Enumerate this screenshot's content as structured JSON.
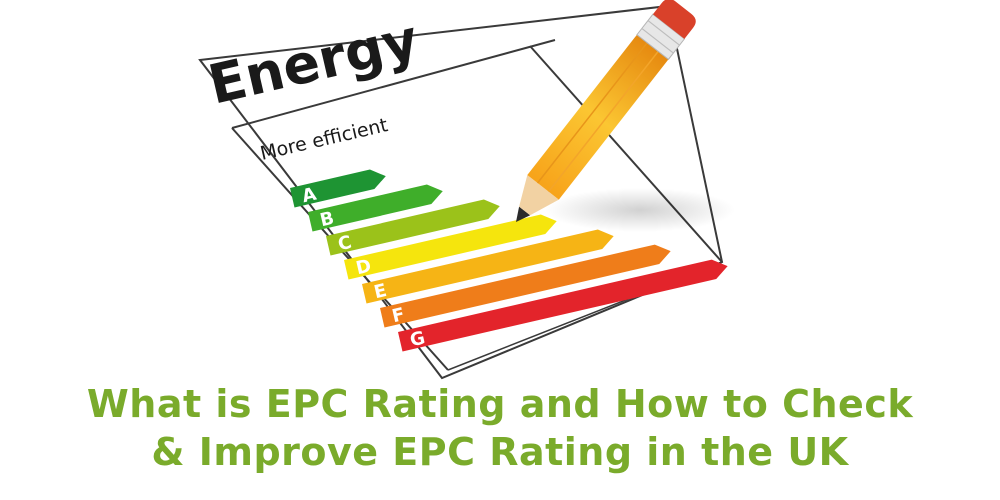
{
  "label": {
    "heading": "Energy",
    "subheading": "More efficient",
    "bands": [
      {
        "letter": "A",
        "color": "#1e9433"
      },
      {
        "letter": "B",
        "color": "#3fae2a"
      },
      {
        "letter": "C",
        "color": "#9bc21a"
      },
      {
        "letter": "D",
        "color": "#f5e50d"
      },
      {
        "letter": "E",
        "color": "#f6b415"
      },
      {
        "letter": "F",
        "color": "#ef7d1a"
      },
      {
        "letter": "G",
        "color": "#e3242b"
      }
    ]
  },
  "headline": {
    "line1": "What is EPC Rating and How to Check",
    "line2": "& Improve EPC Rating in the UK",
    "color": "#7aab2b"
  },
  "icons": {
    "illustration": "energy-label-with-pencil"
  }
}
